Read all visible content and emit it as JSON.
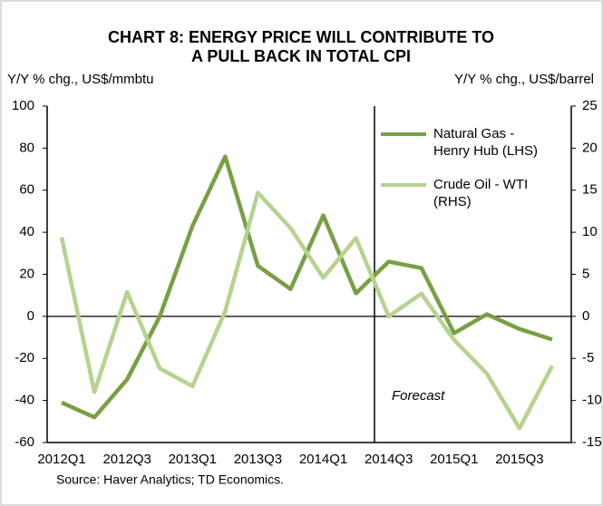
{
  "chart_data": {
    "type": "line",
    "title": [
      "CHART 8: ENERGY PRICE WILL CONTRIBUTE TO",
      "A PULL BACK IN TOTAL CPI"
    ],
    "y_label": "Y/Y % chg., US$/mmbtu",
    "y2_label": "Y/Y % chg., US$/barrel",
    "annotation": "Forecast",
    "source": "Source: Haver Analytics; TD Economics.",
    "categories": [
      "2012Q1",
      null,
      "2012Q3",
      null,
      "2013Q1",
      null,
      "2013Q3",
      null,
      "2014Q1",
      null,
      "2014Q3",
      null,
      "2015Q1",
      null,
      "2015Q3",
      null
    ],
    "series": [
      {
        "name": "Natural Gas - Henry Hub (LHS)",
        "color": "#77a043",
        "values": [
          -41,
          -48,
          -30,
          0,
          43,
          76,
          24,
          13,
          48,
          11,
          26,
          23,
          -8,
          1,
          -6,
          -11
        ]
      },
      {
        "name": "Crude Oil - WTI (RHS)",
        "color": "#b5d38e",
        "axis": "y2",
        "values": [
          9.4,
          -9,
          2.9,
          -6.2,
          -8.3,
          0.6,
          14.7,
          10.5,
          4.6,
          9.3,
          0,
          2.7,
          -2.8,
          -6.8,
          -13.3,
          -5.9
        ]
      }
    ],
    "ylim": [
      -60,
      100
    ],
    "yticks": [
      -60,
      -40,
      -20,
      0,
      20,
      40,
      60,
      80,
      100
    ],
    "y2lim": [
      -15,
      25
    ],
    "y2ticks": [
      -15,
      -10,
      -5,
      0,
      5,
      10,
      15,
      20,
      25
    ],
    "legend": "upper-right"
  }
}
